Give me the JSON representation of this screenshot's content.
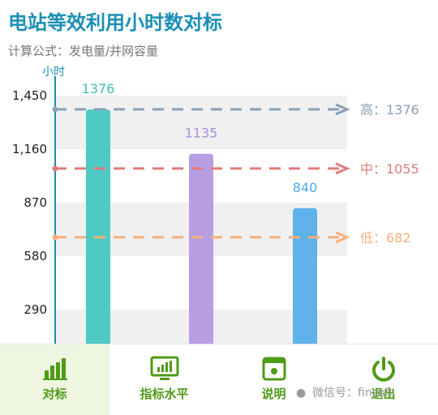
{
  "header": {
    "title": "电站等效利用小时数对标",
    "subtitle": "计算公式：发电量/并网容量"
  },
  "chart_data": {
    "type": "bar",
    "ylabel": "小时",
    "y_ticks": [
      290,
      580,
      870,
      1160,
      1450
    ],
    "y_tick_labels": [
      "290",
      "580",
      "870",
      "1,160",
      "1,450"
    ],
    "ylim": [
      0,
      1550
    ],
    "grid": true,
    "values": [
      1376,
      1135,
      840
    ],
    "bar_colors": [
      "#4fc9c4",
      "#b69ee0",
      "#5fb2ea"
    ],
    "value_label_colors": [
      "#3fbcb8",
      "#a98fd8",
      "#4ea8e6"
    ],
    "reference_lines": [
      {
        "label": "高：1376",
        "value": 1376,
        "color": "#8aa0b8"
      },
      {
        "label": "中：1055",
        "value": 1055,
        "color": "#e07c7c"
      },
      {
        "label": "低：682",
        "value": 682,
        "color": "#f5b07a"
      }
    ]
  },
  "toolbar": {
    "items": [
      {
        "label": "对标",
        "icon": "bar-chart-icon",
        "active": true
      },
      {
        "label": "指标水平",
        "icon": "monitor-chart-icon",
        "active": false
      },
      {
        "label": "说明",
        "icon": "document-icon",
        "active": false
      },
      {
        "label": "退出",
        "icon": "power-icon",
        "active": false
      }
    ]
  },
  "watermark": {
    "text": "微信号：finsoft"
  },
  "colors": {
    "accent": "#1b8fb5",
    "toolbar_green": "#4f9a17"
  }
}
